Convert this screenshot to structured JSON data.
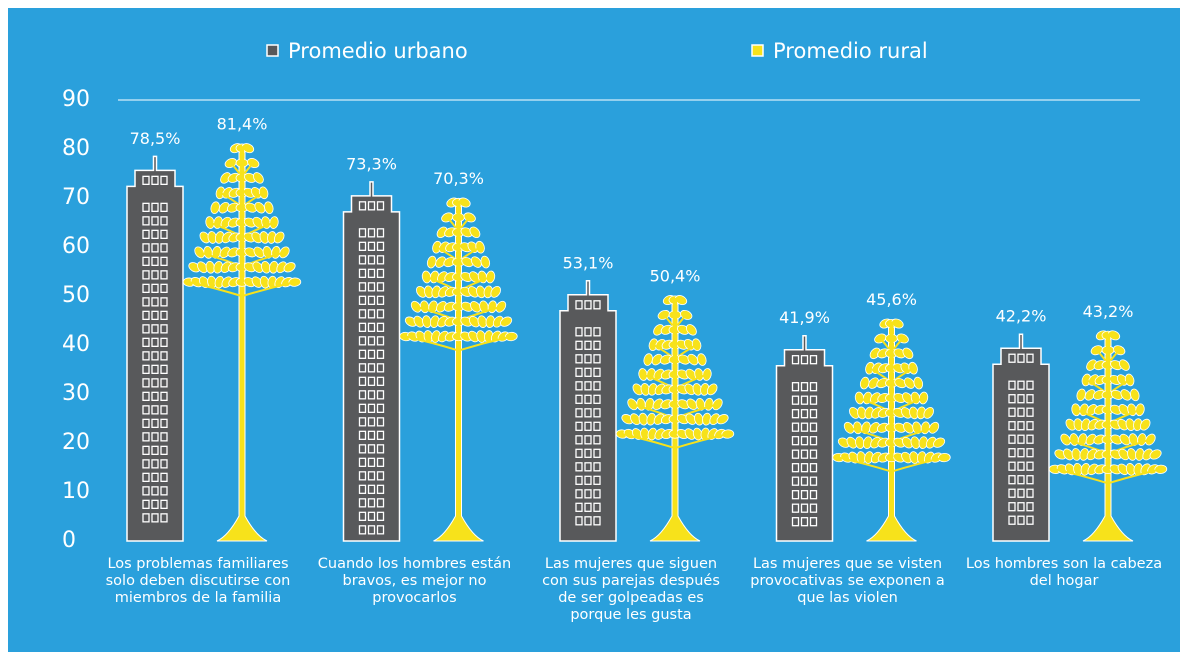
{
  "chart_data": {
    "type": "pictorial-bar",
    "categories": [
      "Los problemas familiares solo deben discutirse con miembros de la familia",
      "Cuando los hombres están bravos, es mejor no provocarlos",
      "Las mujeres que siguen con sus parejas después de ser golpeadas es porque les gusta",
      "Las mujeres que se visten provocativas se exponen a que las violen",
      "Los hombres son la cabeza del hogar"
    ],
    "series": [
      {
        "name": "Promedio urbano",
        "color": "#58595b",
        "values": [
          78.5,
          73.3,
          53.1,
          41.9,
          42.2
        ],
        "value_labels": [
          "78,5%",
          "73,3%",
          "53,1%",
          "41,9%",
          "42,2%"
        ]
      },
      {
        "name": "Promedio rural",
        "color": "#f7e21b",
        "values": [
          81.4,
          70.3,
          50.4,
          45.6,
          43.2
        ],
        "value_labels": [
          "81,4%",
          "70,3%",
          "50,4%",
          "45,6%",
          "43,2%"
        ]
      }
    ],
    "ylim": [
      0,
      90
    ],
    "yticks": [
      0,
      10,
      20,
      30,
      40,
      50,
      60,
      70,
      80,
      90
    ]
  }
}
